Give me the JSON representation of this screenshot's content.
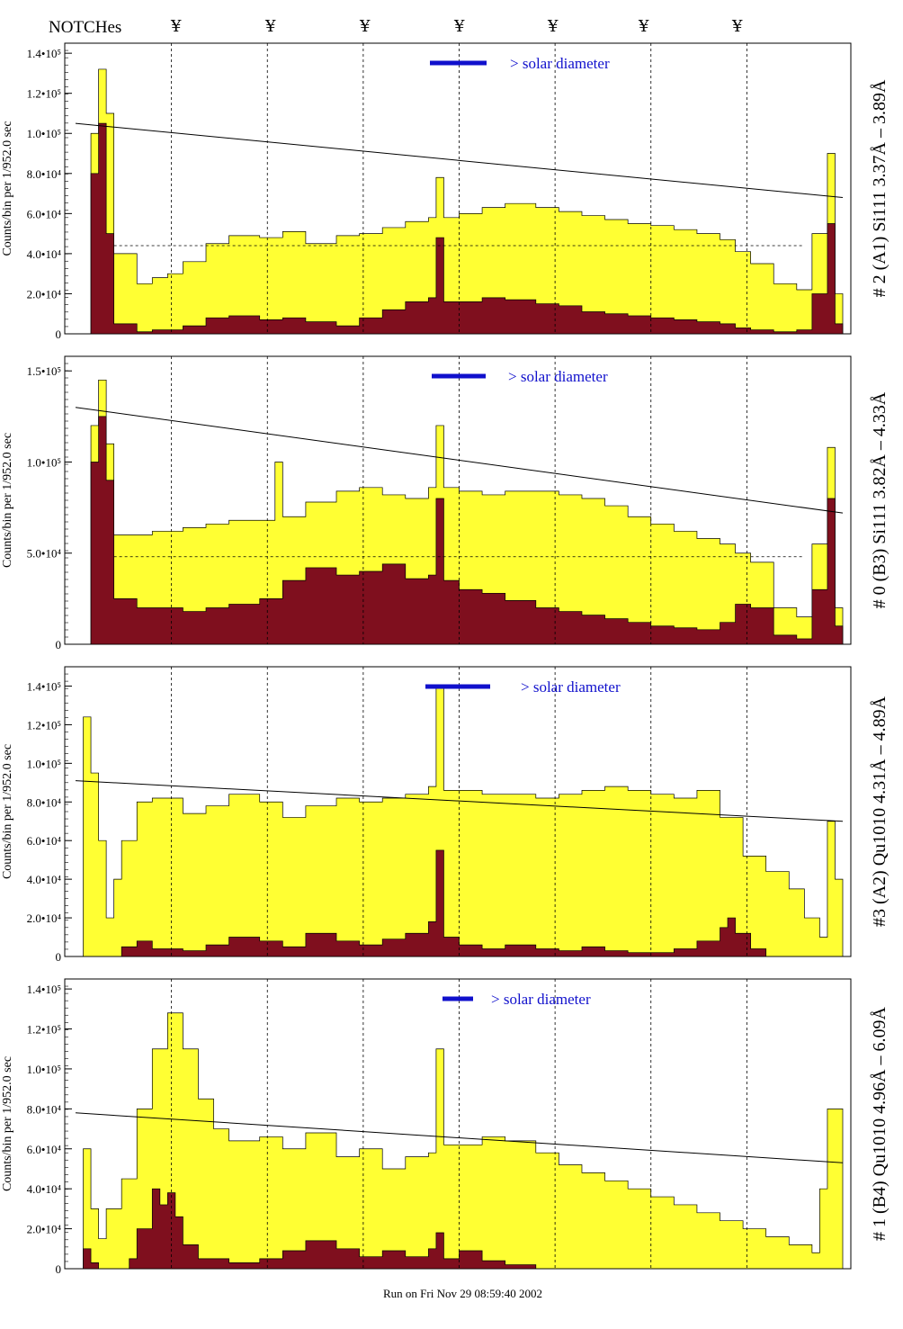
{
  "header": {
    "notch_title": "NOTCHes",
    "notch_symbol": "¥",
    "notch_marks": [
      "¥",
      "¥",
      "¥",
      "¥",
      "¥",
      "¥",
      "¥"
    ]
  },
  "footer": {
    "run_label": "Run on Fri Nov 29 08:59:40 2002"
  },
  "colors": {
    "fill_total": "#ffff33",
    "fill_sub": "#7f0f1e",
    "legend_line": "#1010cc",
    "legend_text": "#1010cc",
    "axis": "#000000"
  },
  "legend_text": "> solar diameter",
  "chart_data": [
    {
      "type": "area",
      "title": "# 2 (A1) Si111  3.37Å – 3.89Å",
      "ylabel": "Counts/bin per  1/952.0 sec",
      "ylim": [
        0,
        145000
      ],
      "yticks": [
        {
          "value": 0,
          "label": "0"
        },
        {
          "value": 20000,
          "label": "2.0•10⁴"
        },
        {
          "value": 40000,
          "label": "4.0•10⁴"
        },
        {
          "value": 60000,
          "label": "6.0•10⁴"
        },
        {
          "value": 80000,
          "label": "8.0•10⁴"
        },
        {
          "value": 100000,
          "label": "1.0•10⁵"
        },
        {
          "value": 120000,
          "label": "1.2•10⁵"
        },
        {
          "value": 140000,
          "label": "1.4•10⁵"
        }
      ],
      "series": [
        {
          "name": "total",
          "x": [
            0,
            2,
            3,
            4,
            5,
            8,
            10,
            12,
            14,
            17,
            20,
            24,
            27,
            30,
            34,
            37,
            40,
            43,
            46,
            47,
            48,
            50,
            53,
            56,
            60,
            63,
            66,
            69,
            72,
            75,
            78,
            81,
            84,
            86,
            88,
            91,
            94,
            96,
            98,
            99,
            100
          ],
          "y": [
            0,
            100000,
            132000,
            110000,
            40000,
            25000,
            28000,
            30000,
            36000,
            45000,
            49000,
            48000,
            51000,
            45000,
            49000,
            50000,
            53000,
            56000,
            58000,
            78000,
            58000,
            60000,
            63000,
            65000,
            63000,
            61000,
            59000,
            57000,
            55000,
            54000,
            52000,
            50000,
            47000,
            41000,
            35000,
            25000,
            22000,
            50000,
            90000,
            20000,
            0
          ]
        },
        {
          "name": "subtracted",
          "x": [
            0,
            2,
            3,
            4,
            5,
            8,
            10,
            14,
            17,
            20,
            24,
            27,
            30,
            34,
            37,
            40,
            43,
            46,
            47,
            48,
            50,
            53,
            56,
            60,
            63,
            66,
            69,
            72,
            75,
            78,
            81,
            84,
            86,
            88,
            91,
            94,
            96,
            98,
            99,
            100
          ],
          "y": [
            0,
            80000,
            105000,
            50000,
            5000,
            1000,
            2000,
            4000,
            8000,
            9000,
            7000,
            8000,
            6000,
            4000,
            8000,
            12000,
            16000,
            18000,
            48000,
            16000,
            16000,
            18000,
            17000,
            15000,
            14000,
            11000,
            10000,
            9000,
            8000,
            7000,
            6000,
            5000,
            3000,
            2000,
            1000,
            2000,
            20000,
            55000,
            5000,
            0
          ]
        }
      ],
      "trend_line": [
        [
          0,
          105000
        ],
        [
          100,
          68000
        ]
      ],
      "dashed_level": 44000,
      "legend_text": "> solar diameter",
      "notch_positions": [
        12.5,
        25,
        37.5,
        50,
        62.5,
        75,
        87.5
      ]
    },
    {
      "type": "area",
      "title": "# 0 (B3) Si111  3.82Å – 4.33Å",
      "ylabel": "Counts/bin per  1/952.0 sec",
      "ylim": [
        0,
        158000
      ],
      "yticks": [
        {
          "value": 0,
          "label": "0"
        },
        {
          "value": 50000,
          "label": "5.0•10⁴"
        },
        {
          "value": 100000,
          "label": "1.0•10⁵"
        },
        {
          "value": 150000,
          "label": "1.5•10⁵"
        }
      ],
      "series": [
        {
          "name": "total",
          "x": [
            0,
            2,
            3,
            4,
            5,
            8,
            10,
            14,
            17,
            20,
            24,
            26,
            27,
            30,
            34,
            37,
            40,
            43,
            46,
            47,
            48,
            50,
            53,
            56,
            60,
            63,
            66,
            69,
            72,
            75,
            78,
            81,
            84,
            86,
            88,
            91,
            94,
            96,
            98,
            99,
            100
          ],
          "y": [
            0,
            120000,
            145000,
            110000,
            60000,
            60000,
            62000,
            64000,
            66000,
            68000,
            68000,
            100000,
            70000,
            78000,
            84000,
            86000,
            82000,
            80000,
            86000,
            120000,
            86000,
            84000,
            82000,
            84000,
            84000,
            82000,
            80000,
            76000,
            70000,
            66000,
            62000,
            58000,
            55000,
            50000,
            45000,
            20000,
            15000,
            55000,
            108000,
            20000,
            0
          ]
        },
        {
          "name": "subtracted",
          "x": [
            0,
            2,
            3,
            4,
            5,
            8,
            10,
            14,
            17,
            20,
            24,
            27,
            30,
            34,
            37,
            40,
            43,
            46,
            47,
            48,
            50,
            53,
            56,
            60,
            63,
            66,
            69,
            72,
            75,
            78,
            81,
            84,
            86,
            88,
            91,
            94,
            96,
            98,
            99,
            100
          ],
          "y": [
            0,
            100000,
            125000,
            90000,
            25000,
            20000,
            20000,
            18000,
            20000,
            22000,
            25000,
            35000,
            42000,
            38000,
            40000,
            44000,
            36000,
            38000,
            80000,
            35000,
            30000,
            28000,
            24000,
            20000,
            18000,
            16000,
            14000,
            12000,
            10000,
            9000,
            8000,
            12000,
            22000,
            20000,
            5000,
            3000,
            30000,
            80000,
            10000,
            0
          ]
        }
      ],
      "trend_line": [
        [
          0,
          130000
        ],
        [
          100,
          72000
        ]
      ],
      "dashed_level": 48000,
      "legend_text": "> solar diameter",
      "notch_positions": [
        12.5,
        25,
        37.5,
        50,
        62.5,
        75,
        87.5
      ]
    },
    {
      "type": "area",
      "title": "#3 (A2) Qu1010  4.31Å – 4.89Å",
      "ylabel": "Counts/bin per  1/952.0 sec",
      "ylim": [
        0,
        150000
      ],
      "yticks": [
        {
          "value": 0,
          "label": "0"
        },
        {
          "value": 20000,
          "label": "2.0•10⁴"
        },
        {
          "value": 40000,
          "label": "4.0•10⁴"
        },
        {
          "value": 60000,
          "label": "6.0•10⁴"
        },
        {
          "value": 80000,
          "label": "8.0•10⁴"
        },
        {
          "value": 100000,
          "label": "1.0•10⁵"
        },
        {
          "value": 120000,
          "label": "1.2•10⁵"
        },
        {
          "value": 140000,
          "label": "1.4•10⁵"
        }
      ],
      "series": [
        {
          "name": "total",
          "x": [
            0,
            1,
            2,
            3,
            4,
            5,
            6,
            8,
            10,
            14,
            17,
            20,
            24,
            27,
            30,
            34,
            37,
            40,
            43,
            46,
            47,
            48,
            50,
            53,
            56,
            60,
            63,
            66,
            69,
            72,
            75,
            78,
            81,
            84,
            87,
            90,
            93,
            95,
            97,
            98,
            99,
            100
          ],
          "y": [
            0,
            124000,
            95000,
            60000,
            20000,
            40000,
            60000,
            80000,
            82000,
            74000,
            78000,
            84000,
            80000,
            72000,
            78000,
            82000,
            80000,
            82000,
            84000,
            88000,
            140000,
            86000,
            86000,
            84000,
            84000,
            82000,
            84000,
            86000,
            88000,
            86000,
            84000,
            82000,
            86000,
            72000,
            52000,
            44000,
            35000,
            20000,
            10000,
            70000,
            40000,
            0
          ]
        },
        {
          "name": "subtracted",
          "x": [
            0,
            5,
            6,
            8,
            10,
            14,
            17,
            20,
            24,
            27,
            30,
            34,
            37,
            40,
            43,
            46,
            47,
            48,
            50,
            53,
            56,
            60,
            63,
            66,
            69,
            72,
            75,
            78,
            81,
            84,
            85,
            86,
            88,
            90,
            100
          ],
          "y": [
            0,
            0,
            5000,
            8000,
            4000,
            3000,
            6000,
            10000,
            8000,
            5000,
            12000,
            8000,
            6000,
            9000,
            12000,
            18000,
            55000,
            10000,
            6000,
            4000,
            6000,
            4000,
            3000,
            5000,
            3000,
            2000,
            2000,
            4000,
            8000,
            15000,
            20000,
            12000,
            4000,
            0,
            0
          ]
        }
      ],
      "trend_line": [
        [
          0,
          91000
        ],
        [
          100,
          70000
        ]
      ],
      "dashed_level": null,
      "legend_text": "> solar diameter",
      "notch_positions": [
        12.5,
        25,
        37.5,
        50,
        62.5,
        75,
        87.5
      ]
    },
    {
      "type": "area",
      "title": "# 1 (B4) Qu1010 4.96Å – 6.09Å",
      "ylabel": "Counts/bin per  1/952.0 sec",
      "ylim": [
        0,
        145000
      ],
      "yticks": [
        {
          "value": 0,
          "label": "0"
        },
        {
          "value": 20000,
          "label": "2.0•10⁴"
        },
        {
          "value": 40000,
          "label": "4.0•10⁴"
        },
        {
          "value": 60000,
          "label": "6.0•10⁴"
        },
        {
          "value": 80000,
          "label": "8.0•10⁴"
        },
        {
          "value": 100000,
          "label": "1.0•10⁵"
        },
        {
          "value": 120000,
          "label": "1.2•10⁵"
        },
        {
          "value": 140000,
          "label": "1.4•10⁵"
        }
      ],
      "series": [
        {
          "name": "total",
          "x": [
            0,
            1,
            2,
            3,
            4,
            6,
            8,
            10,
            12,
            14,
            16,
            18,
            20,
            24,
            27,
            30,
            34,
            37,
            40,
            43,
            46,
            47,
            48,
            50,
            53,
            56,
            60,
            63,
            66,
            69,
            72,
            75,
            78,
            81,
            84,
            87,
            90,
            93,
            96,
            97,
            98,
            100
          ],
          "y": [
            0,
            60000,
            30000,
            15000,
            30000,
            45000,
            80000,
            110000,
            128000,
            110000,
            85000,
            70000,
            64000,
            66000,
            60000,
            68000,
            56000,
            60000,
            50000,
            56000,
            58000,
            110000,
            62000,
            62000,
            66000,
            64000,
            58000,
            52000,
            48000,
            44000,
            40000,
            36000,
            32000,
            28000,
            24000,
            20000,
            16000,
            12000,
            8000,
            40000,
            80000,
            0
          ]
        },
        {
          "name": "subtracted",
          "x": [
            0,
            1,
            2,
            3,
            6,
            7,
            8,
            10,
            11,
            12,
            13,
            14,
            16,
            20,
            24,
            27,
            30,
            34,
            37,
            40,
            43,
            46,
            47,
            48,
            50,
            53,
            56,
            60,
            70,
            100
          ],
          "y": [
            0,
            10000,
            3000,
            0,
            0,
            5000,
            20000,
            40000,
            32000,
            38000,
            26000,
            12000,
            5000,
            3000,
            5000,
            9000,
            14000,
            10000,
            6000,
            9000,
            6000,
            10000,
            18000,
            5000,
            9000,
            4000,
            2000,
            0,
            0,
            0
          ]
        }
      ],
      "trend_line": [
        [
          0,
          78000
        ],
        [
          100,
          53000
        ]
      ],
      "dashed_level": null,
      "legend_text": "> solar diameter",
      "notch_positions": [
        12.5,
        25,
        37.5,
        50,
        62.5,
        75,
        87.5
      ]
    }
  ]
}
